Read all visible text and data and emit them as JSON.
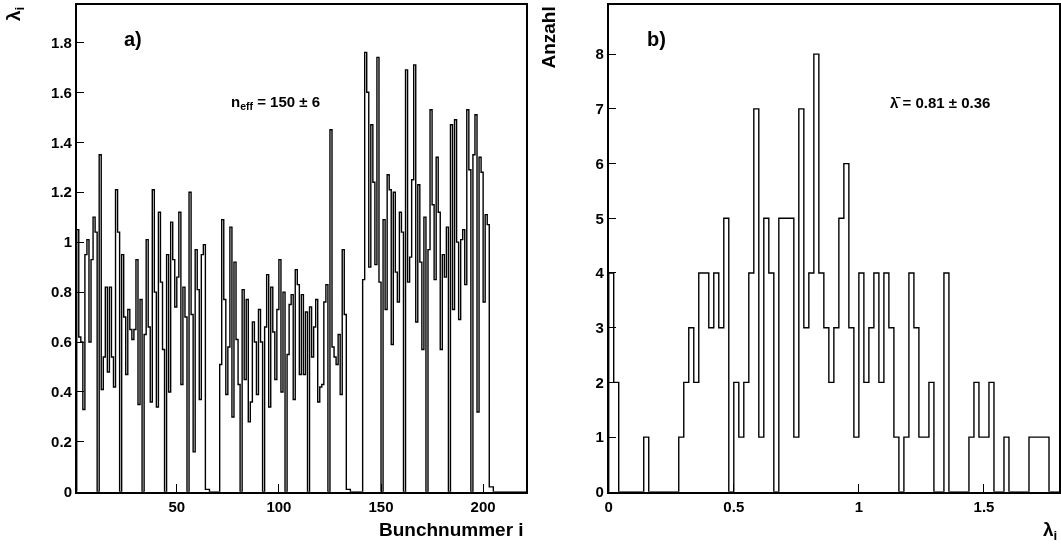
{
  "chart_data": [
    {
      "type": "histogram",
      "xlabel": "Bunchnummer i",
      "ylabel": "λ$_{i}$",
      "annotations": [
        "a)",
        "n$_{eff}$ = 150 ± 6"
      ],
      "bins": [
        1,
        2,
        3,
        4,
        5,
        6,
        7,
        8,
        9,
        10,
        11,
        12,
        13,
        14,
        15,
        16,
        17,
        18,
        19,
        20,
        21,
        22,
        23,
        24,
        25,
        26,
        27,
        28,
        29,
        30,
        31,
        32,
        33,
        34,
        35,
        36,
        37,
        38,
        39,
        40,
        41,
        42,
        43,
        44,
        45,
        46,
        47,
        48,
        49,
        50,
        51,
        52,
        53,
        54,
        55,
        56,
        57,
        58,
        59,
        60,
        61,
        62,
        63,
        64,
        65,
        66,
        67,
        68,
        69,
        70,
        71,
        72,
        73,
        74,
        75,
        76,
        77,
        78,
        79,
        80,
        81,
        82,
        83,
        84,
        85,
        86,
        87,
        88,
        89,
        90,
        91,
        92,
        93,
        94,
        95,
        96,
        97,
        98,
        99,
        100,
        101,
        102,
        103,
        104,
        105,
        106,
        107,
        108,
        109,
        110,
        111,
        112,
        113,
        114,
        115,
        116,
        117,
        118,
        119,
        120,
        121,
        122,
        123,
        124,
        125,
        126,
        127,
        128,
        129,
        130,
        131,
        132,
        133,
        134,
        135,
        136,
        137,
        138,
        139,
        140,
        141,
        142,
        143,
        144,
        145,
        146,
        147,
        148,
        149,
        150,
        151,
        152,
        153,
        154,
        155,
        156,
        157,
        158,
        159,
        160,
        161,
        162,
        163,
        164,
        165,
        166,
        167,
        168,
        169,
        170,
        171,
        172,
        173,
        174,
        175,
        176,
        177,
        178,
        179,
        180,
        181,
        182,
        183,
        184,
        185,
        186,
        187,
        188,
        189,
        190,
        191,
        192,
        193,
        194,
        195,
        196,
        197,
        198,
        199,
        200,
        201,
        202,
        203,
        204,
        205,
        206,
        207,
        208,
        209,
        210,
        211,
        212,
        213,
        214,
        215,
        216,
        217,
        218,
        219,
        220,
        221
      ],
      "values": [
        1.05,
        0.62,
        0.6,
        0.33,
        0.95,
        1.01,
        0.6,
        0.93,
        1.1,
        1.04,
        0,
        1.35,
        0.41,
        0.54,
        0.82,
        0.48,
        0.82,
        0.54,
        0.42,
        1.21,
        1.04,
        0,
        0.95,
        0.7,
        0.47,
        0.73,
        0.65,
        0.61,
        0.65,
        0.93,
        0.35,
        0.77,
        0,
        0.63,
        1.01,
        0.66,
        0.36,
        1.21,
        0.8,
        0.34,
        1.12,
        0.84,
        0.57,
        0,
        0.95,
        0.4,
        1.08,
        0.93,
        0.74,
        0.86,
        1.12,
        0.43,
        0.82,
        0.7,
        0,
        1.2,
        0.71,
        0.16,
        0.97,
        0.81,
        0.37,
        0.95,
        0.99,
        0.01,
        0.01,
        0,
        0,
        0,
        0,
        0,
        0.51,
        1.09,
        0.77,
        0.39,
        0.58,
        1.06,
        0.3,
        0.92,
        0.61,
        0.43,
        0,
        0.81,
        0.45,
        0.77,
        0.28,
        0.36,
        0.68,
        0.6,
        0.39,
        0.73,
        0.6,
        0,
        0.66,
        0.87,
        0.34,
        0.82,
        0.64,
        0.45,
        0.73,
        0.93,
        0.4,
        0.8,
        0,
        0.55,
        0.75,
        0.79,
        0.37,
        0.89,
        0.83,
        0.47,
        0.79,
        0.47,
        0.72,
        0,
        0.74,
        0.54,
        0.66,
        0.77,
        0.36,
        0.42,
        0.43,
        0.76,
        0.83,
        0,
        1.45,
        0.58,
        0.54,
        0.51,
        0.63,
        0.39,
        0.97,
        0.71,
        0.01,
        0.01,
        0,
        0,
        0,
        0,
        0,
        0,
        0.85,
        1.76,
        1.6,
        0.9,
        1.47,
        1.24,
        0.91,
        1.74,
        0.84,
        0,
        1.09,
        0.73,
        1.27,
        1.21,
        0.59,
        1.2,
        0.88,
        0.76,
        1.12,
        1.04,
        0,
        1.69,
        0.84,
        0.94,
        1.25,
        1.71,
        0.68,
        1.23,
        0.92,
        0.57,
        1.1,
        0,
        0.97,
        1.53,
        1.15,
        0.85,
        1.34,
        1.12,
        0.57,
        0.95,
        0.86,
        1.06,
        0,
        1.47,
        0.73,
        1.49,
        1.0,
        0.69,
        1.01,
        1.05,
        0.83,
        1.53,
        1.29,
        0,
        1.35,
        1.51,
        0.32,
        1.34,
        1.28,
        0.76,
        1.11,
        1.07,
        0.02,
        0.02,
        0,
        0,
        0,
        0,
        0,
        0,
        0,
        0,
        0,
        0,
        0,
        0,
        0,
        0,
        0,
        0
      ],
      "color": "#000000",
      "xlim": [
        1,
        221
      ],
      "xticks": [
        50,
        100,
        150,
        200
      ],
      "ylim": [
        0,
        1.95
      ],
      "yticks": [
        0,
        0.2,
        0.4,
        0.6,
        0.8,
        1,
        1.2,
        1.4,
        1.6,
        1.8
      ]
    },
    {
      "type": "histogram",
      "xlabel": "λ$_{i}$",
      "ylabel": "Anzahl",
      "annotations": [
        "b)",
        "λ̄ = 0.81 ± 0.36"
      ],
      "bins": [
        0,
        0.02,
        0.04,
        0.06,
        0.08,
        0.1,
        0.12,
        0.14,
        0.16,
        0.18,
        0.2,
        0.22,
        0.24,
        0.26,
        0.28,
        0.3,
        0.32,
        0.34,
        0.36,
        0.38,
        0.4,
        0.42,
        0.44,
        0.46,
        0.48,
        0.5,
        0.52,
        0.54,
        0.56,
        0.58,
        0.6,
        0.62,
        0.64,
        0.66,
        0.68,
        0.7,
        0.72,
        0.74,
        0.76,
        0.78,
        0.8,
        0.82,
        0.84,
        0.86,
        0.88,
        0.9,
        0.92,
        0.94,
        0.96,
        0.98,
        1,
        1.02,
        1.04,
        1.06,
        1.08,
        1.1,
        1.12,
        1.14,
        1.16,
        1.18,
        1.2,
        1.22,
        1.24,
        1.26,
        1.28,
        1.3,
        1.32,
        1.34,
        1.36,
        1.38,
        1.4,
        1.42,
        1.44,
        1.46,
        1.48,
        1.5,
        1.52,
        1.54,
        1.56,
        1.58,
        1.6,
        1.62,
        1.64,
        1.66,
        1.68,
        1.7,
        1.72,
        1.74,
        1.76,
        1.78,
        1.8
      ],
      "values": [
        4,
        2,
        0,
        0,
        0,
        0,
        0,
        1,
        0,
        0,
        0,
        0,
        0,
        0,
        1,
        2,
        3,
        2,
        4,
        4,
        3,
        4,
        3,
        5,
        0,
        2,
        1,
        2,
        4,
        7,
        1,
        5,
        4,
        0,
        5,
        5,
        5,
        1,
        7,
        3,
        4,
        8,
        4,
        3,
        2,
        3,
        5,
        6,
        3,
        1,
        4,
        2,
        3,
        4,
        2,
        4,
        3,
        1,
        0,
        1,
        4,
        3,
        1,
        1,
        2,
        0,
        0,
        4,
        0,
        0,
        0,
        0,
        1,
        2,
        1,
        1,
        2,
        0,
        0,
        1,
        0,
        0,
        0,
        0,
        1,
        1,
        1,
        1,
        0,
        0
      ],
      "color": "#000000",
      "xlim": [
        0,
        1.8
      ],
      "xticks": [
        0,
        0.5,
        1,
        1.5
      ],
      "ylim": [
        0,
        8.9
      ],
      "yticks": [
        0,
        1,
        2,
        3,
        4,
        5,
        6,
        7,
        8
      ]
    }
  ]
}
